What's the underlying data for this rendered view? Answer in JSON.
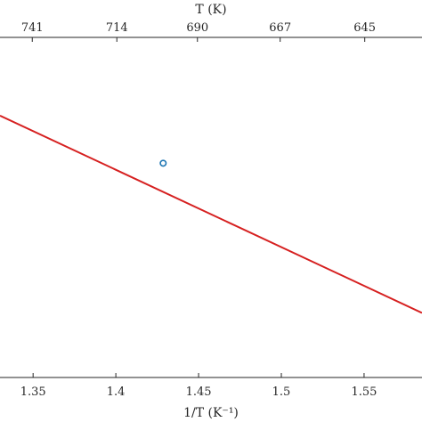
{
  "chart_data": {
    "type": "line",
    "grid": false,
    "xlabel": "1/T (K⁻¹)",
    "x2label": "T (K)",
    "xlim": [
      1.33,
      1.585
    ],
    "xticks": [
      1.35,
      1.4,
      1.45,
      1.5,
      1.55
    ],
    "xticklabels": [
      "1.35",
      "1.4",
      "1.45",
      "1.5",
      "1.55"
    ],
    "top_axis_ticks": [
      {
        "label": "741",
        "at": 1.3495
      },
      {
        "label": "714",
        "at": 1.4006
      },
      {
        "label": "690",
        "at": 1.4493
      },
      {
        "label": "667",
        "at": 1.4993
      },
      {
        "label": "645",
        "at": 1.5504
      }
    ],
    "ylim": [
      0,
      1
    ],
    "series": [
      {
        "kind": "fit-line",
        "color": "#d62020",
        "x": [
          1.33,
          1.585
        ],
        "y": [
          0.77,
          0.19
        ]
      },
      {
        "kind": "marker",
        "marker": "circle-open",
        "color": "#1f77b4",
        "x": [
          1.4286
        ],
        "y": [
          0.63
        ]
      }
    ]
  }
}
